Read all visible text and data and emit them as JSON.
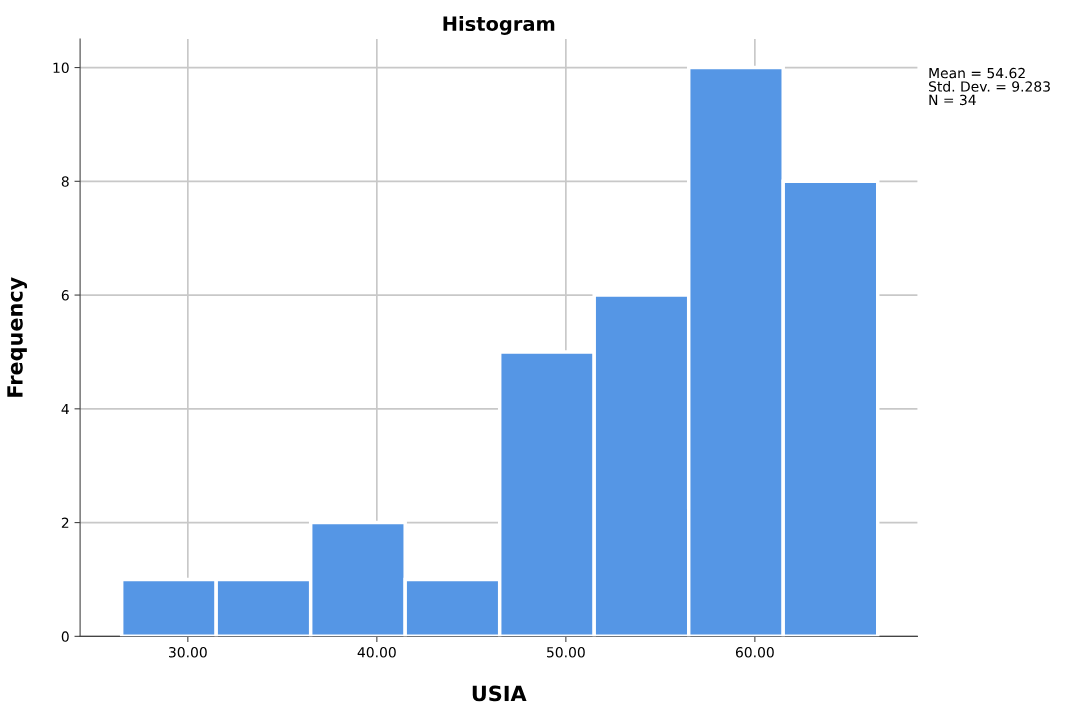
{
  "chart_data": {
    "type": "histogram",
    "title": "Histogram",
    "xlabel": "USIA",
    "ylabel": "Frequency",
    "bins": [
      26.5,
      31.5,
      36.5,
      41.5,
      46.5,
      51.5,
      56.5,
      61.5,
      66.5
    ],
    "values": [
      1,
      1,
      2,
      1,
      5,
      6,
      10,
      8
    ],
    "color": "#5596e5",
    "xlim": [
      24.3,
      68.6
    ],
    "ylim": [
      0,
      10.5
    ],
    "xticks": [
      {
        "value": 30,
        "label": "30.00"
      },
      {
        "value": 40,
        "label": "40.00"
      },
      {
        "value": 50,
        "label": "50.00"
      },
      {
        "value": 60,
        "label": "60.00"
      }
    ],
    "yticks": [
      0,
      2,
      4,
      6,
      8,
      10
    ],
    "grid": true,
    "annotations": [
      "Mean = 54.62\nStd. Dev. = 9.283\nN = 34"
    ]
  }
}
